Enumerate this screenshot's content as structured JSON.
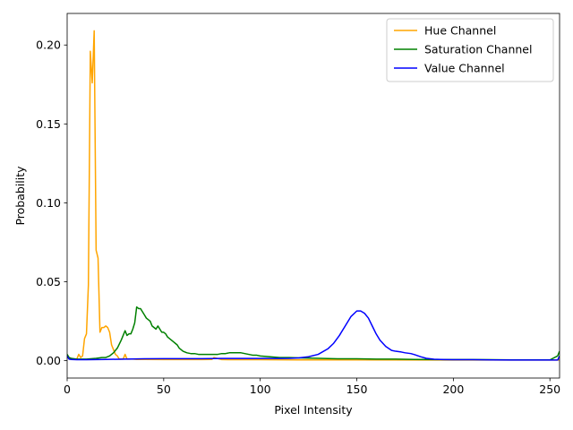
{
  "chart_data": {
    "type": "line",
    "xlabel": "Pixel Intensity",
    "ylabel": "Probability",
    "xlim": [
      0,
      255
    ],
    "ylim": [
      -0.011,
      0.22
    ],
    "x_ticks": [
      0,
      50,
      100,
      150,
      200,
      250
    ],
    "y_ticks": [
      0.0,
      0.05,
      0.1,
      0.15,
      0.2
    ],
    "y_tick_labels": [
      "0.00",
      "0.05",
      "0.10",
      "0.15",
      "0.20"
    ],
    "legend_position": "top-right",
    "grid": false,
    "series": [
      {
        "name": "Hue Channel",
        "color": "#ffa500",
        "x": [
          0,
          1,
          2,
          3,
          4,
          5,
          6,
          7,
          8,
          9,
          10,
          11,
          12,
          13,
          14,
          15,
          16,
          17,
          18,
          19,
          20,
          21,
          22,
          23,
          24,
          25,
          26,
          27,
          28,
          29,
          30,
          31,
          32,
          34,
          36,
          40,
          50,
          60,
          70,
          75,
          76,
          80,
          90,
          100,
          120,
          150,
          200,
          255
        ],
        "y": [
          0.002,
          0.0015,
          0.0015,
          0.001,
          0.001,
          0.001,
          0.004,
          0.002,
          0.003,
          0.014,
          0.017,
          0.048,
          0.196,
          0.176,
          0.209,
          0.07,
          0.065,
          0.018,
          0.021,
          0.021,
          0.022,
          0.021,
          0.018,
          0.01,
          0.007,
          0.004,
          0.003,
          0.001,
          0.001,
          0.001,
          0.004,
          0.001,
          0.001,
          0.001,
          0.0008,
          0.0008,
          0.0007,
          0.0007,
          0.0007,
          0.0008,
          0.002,
          0.0007,
          0.0006,
          0.0006,
          0.0005,
          0.0005,
          0.0004,
          0.0004
        ]
      },
      {
        "name": "Saturation Channel",
        "color": "#008000",
        "x": [
          0,
          1,
          2,
          5,
          10,
          15,
          18,
          20,
          22,
          24,
          26,
          28,
          29,
          30,
          31,
          32,
          33,
          34,
          35,
          36,
          37,
          38,
          39,
          40,
          41,
          42,
          43,
          44,
          45,
          46,
          47,
          48,
          49,
          50,
          51,
          52,
          53,
          54,
          55,
          56,
          57,
          58,
          59,
          60,
          62,
          64,
          66,
          68,
          70,
          72,
          74,
          76,
          78,
          80,
          82,
          84,
          86,
          88,
          90,
          92,
          94,
          96,
          98,
          100,
          105,
          110,
          115,
          120,
          130,
          140,
          150,
          160,
          170,
          180,
          190,
          200,
          210,
          220,
          230,
          240,
          250,
          254,
          255
        ],
        "y": [
          0.004,
          0.002,
          0.0015,
          0.001,
          0.001,
          0.0015,
          0.002,
          0.002,
          0.003,
          0.005,
          0.008,
          0.013,
          0.016,
          0.019,
          0.016,
          0.017,
          0.017,
          0.02,
          0.024,
          0.034,
          0.033,
          0.033,
          0.031,
          0.029,
          0.027,
          0.026,
          0.025,
          0.022,
          0.021,
          0.02,
          0.022,
          0.02,
          0.018,
          0.018,
          0.017,
          0.015,
          0.014,
          0.013,
          0.012,
          0.011,
          0.01,
          0.008,
          0.007,
          0.006,
          0.005,
          0.0045,
          0.0045,
          0.004,
          0.004,
          0.004,
          0.004,
          0.004,
          0.004,
          0.0045,
          0.0045,
          0.005,
          0.005,
          0.005,
          0.005,
          0.0045,
          0.004,
          0.0035,
          0.0035,
          0.003,
          0.0025,
          0.002,
          0.002,
          0.0018,
          0.0015,
          0.0012,
          0.0012,
          0.001,
          0.001,
          0.0008,
          0.0007,
          0.0007,
          0.0007,
          0.0006,
          0.0005,
          0.0005,
          0.0005,
          0.003,
          0.006
        ]
      },
      {
        "name": "Value Channel",
        "color": "#0000ff",
        "x": [
          0,
          1,
          2,
          5,
          10,
          20,
          30,
          40,
          50,
          60,
          70,
          80,
          90,
          100,
          110,
          115,
          120,
          125,
          130,
          135,
          138,
          141,
          144,
          147,
          150,
          152,
          154,
          156,
          158,
          160,
          162,
          165,
          168,
          170,
          173,
          175,
          178,
          180,
          183,
          186,
          190,
          195,
          200,
          210,
          220,
          230,
          240,
          250,
          254,
          255
        ],
        "y": [
          0.003,
          0.001,
          0.0008,
          0.0006,
          0.0006,
          0.0008,
          0.001,
          0.0012,
          0.0013,
          0.0013,
          0.0013,
          0.0014,
          0.0014,
          0.0014,
          0.0014,
          0.0015,
          0.0018,
          0.0025,
          0.004,
          0.0075,
          0.011,
          0.016,
          0.022,
          0.028,
          0.0315,
          0.0315,
          0.03,
          0.027,
          0.022,
          0.017,
          0.013,
          0.009,
          0.0065,
          0.006,
          0.0055,
          0.005,
          0.0045,
          0.0038,
          0.0025,
          0.0015,
          0.0009,
          0.0007,
          0.0006,
          0.0006,
          0.0005,
          0.0004,
          0.0004,
          0.0004,
          0.0004,
          0.003
        ]
      }
    ]
  }
}
